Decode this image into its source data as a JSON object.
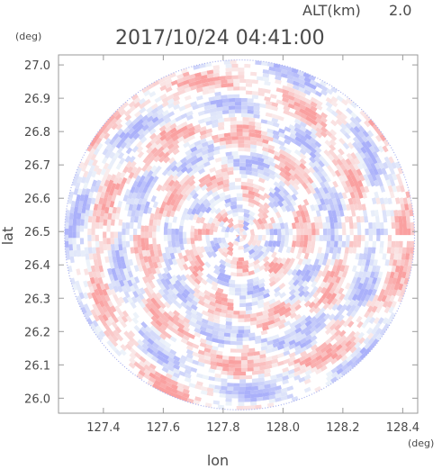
{
  "chart_data": {
    "type": "heatmap",
    "header": {
      "alt_label": "ALT(km)",
      "alt_value": "2.0",
      "timestamp": "2017/10/24 04:41:00"
    },
    "xlabel": "lon",
    "ylabel": "lat",
    "x_unit": "(deg)",
    "y_unit": "(deg)",
    "xlim": [
      127.25,
      128.45
    ],
    "ylim": [
      25.955,
      27.03
    ],
    "x_ticks": [
      127.4,
      127.6,
      127.8,
      128.0,
      128.2,
      128.4
    ],
    "x_tick_labels": [
      "127.4",
      "127.6",
      "127.8",
      "128.0",
      "128.2",
      "128.4"
    ],
    "y_ticks": [
      26.0,
      26.1,
      26.2,
      26.3,
      26.4,
      26.5,
      26.6,
      26.7,
      26.8,
      26.9,
      27.0
    ],
    "y_tick_labels": [
      "26.0",
      "26.1",
      "26.2",
      "26.3",
      "26.4",
      "26.5",
      "26.6",
      "26.7",
      "26.8",
      "26.9",
      "27.0"
    ],
    "radar_center": {
      "lon": 127.855,
      "lat": 26.49
    },
    "radar_range_deg_lat": 0.525,
    "colors": {
      "positive": "#f4a0a0",
      "negative": "#a8b0f0",
      "neutral": "#ffffff",
      "frame": "#9a9a9a",
      "text": "#4a4a4a"
    }
  }
}
